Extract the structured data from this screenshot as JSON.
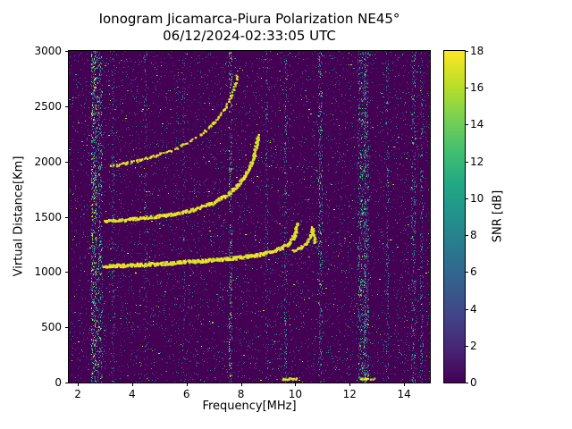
{
  "figure": {
    "title": "Ionogram Jicamarca-Piura Polarization NE45°",
    "subtitle": "06/12/2024-02:33:05 UTC"
  },
  "axes": {
    "xlabel": "Frequency[MHz]",
    "ylabel": "Virtual Distance[Km]",
    "x_ticks": [
      2,
      4,
      6,
      8,
      10,
      12,
      14
    ],
    "y_ticks": [
      0,
      500,
      1000,
      1500,
      2000,
      2500,
      3000
    ]
  },
  "colorbar": {
    "label": "SNR [dB]",
    "min": 0,
    "max": 18,
    "ticks": [
      0,
      2,
      4,
      6,
      8,
      10,
      12,
      14,
      16,
      18
    ]
  },
  "chart_data": {
    "type": "heatmap",
    "title": "Ionogram Jicamarca-Piura Polarization NE45° — 06/12/2024-02:33:05 UTC",
    "xlabel": "Frequency[MHz]",
    "ylabel": "Virtual Distance[Km]",
    "colorbar_label": "SNR [dB]",
    "xlim": [
      1.67,
      14.95
    ],
    "ylim": [
      0,
      3000
    ],
    "snr_range_db": [
      0,
      18
    ],
    "colormap": [
      {
        "t": 0.0,
        "color": "#440154"
      },
      {
        "t": 0.1,
        "color": "#482475"
      },
      {
        "t": 0.2,
        "color": "#414487"
      },
      {
        "t": 0.3,
        "color": "#355f8d"
      },
      {
        "t": 0.4,
        "color": "#2a788e"
      },
      {
        "t": 0.5,
        "color": "#21918c"
      },
      {
        "t": 0.6,
        "color": "#22a884"
      },
      {
        "t": 0.7,
        "color": "#44bf70"
      },
      {
        "t": 0.8,
        "color": "#7ad151"
      },
      {
        "t": 0.9,
        "color": "#bddf26"
      },
      {
        "t": 1.0,
        "color": "#fde725"
      }
    ],
    "noise": {
      "count": 12000,
      "exponent": 3,
      "vmax": 0.55,
      "bright_count": 450
    },
    "rfi_stripes": [
      {
        "f": 2.6,
        "width_mhz": 0.1,
        "density": 2.4,
        "vmax": 1.0
      },
      {
        "f": 2.82,
        "width_mhz": 0.08,
        "density": 1.3,
        "vmax": 0.85
      },
      {
        "f": 3.3,
        "width_mhz": 0.05,
        "density": 0.5,
        "vmax": 0.6
      },
      {
        "f": 4.5,
        "width_mhz": 0.05,
        "density": 0.35,
        "vmax": 0.55
      },
      {
        "f": 5.9,
        "width_mhz": 0.05,
        "density": 0.3,
        "vmax": 0.5
      },
      {
        "f": 7.62,
        "width_mhz": 0.06,
        "density": 0.9,
        "vmax": 0.95
      },
      {
        "f": 8.95,
        "width_mhz": 0.05,
        "density": 0.5,
        "vmax": 0.6
      },
      {
        "f": 9.65,
        "width_mhz": 0.05,
        "density": 0.6,
        "vmax": 0.7
      },
      {
        "f": 10.93,
        "width_mhz": 0.07,
        "density": 1.0,
        "vmax": 0.8
      },
      {
        "f": 12.45,
        "width_mhz": 0.14,
        "density": 2.2,
        "vmax": 0.85
      },
      {
        "f": 12.62,
        "width_mhz": 0.08,
        "density": 1.3,
        "vmax": 0.8
      },
      {
        "f": 13.38,
        "width_mhz": 0.05,
        "density": 0.5,
        "vmax": 0.6
      },
      {
        "f": 14.35,
        "width_mhz": 0.08,
        "density": 1.0,
        "vmax": 0.75
      },
      {
        "f": 14.65,
        "width_mhz": 0.05,
        "density": 0.6,
        "vmax": 0.65
      }
    ],
    "traces": [
      {
        "name": "f-region-echo-first-hop",
        "points": [
          [
            3.0,
            1050
          ],
          [
            3.6,
            1056
          ],
          [
            4.2,
            1062
          ],
          [
            4.8,
            1070
          ],
          [
            5.4,
            1078
          ],
          [
            6.0,
            1088
          ],
          [
            6.6,
            1098
          ],
          [
            7.2,
            1110
          ],
          [
            7.8,
            1124
          ],
          [
            8.3,
            1140
          ],
          [
            8.8,
            1160
          ],
          [
            9.2,
            1185
          ],
          [
            9.5,
            1215
          ],
          [
            9.75,
            1255
          ],
          [
            9.95,
            1310
          ],
          [
            10.05,
            1380
          ],
          [
            10.1,
            1430
          ]
        ],
        "density": 1.0,
        "jitter": 3.2,
        "size": 2.6
      },
      {
        "name": "f-region-echo-x-mode-hook",
        "points": [
          [
            9.9,
            1185
          ],
          [
            10.2,
            1215
          ],
          [
            10.45,
            1265
          ],
          [
            10.58,
            1330
          ],
          [
            10.65,
            1400
          ],
          [
            10.7,
            1330
          ],
          [
            10.73,
            1255
          ]
        ],
        "density": 0.9,
        "jitter": 2.6,
        "size": 2.2
      },
      {
        "name": "f-region-echo-second-hop",
        "points": [
          [
            3.0,
            1458
          ],
          [
            3.6,
            1468
          ],
          [
            4.2,
            1480
          ],
          [
            4.8,
            1496
          ],
          [
            5.4,
            1516
          ],
          [
            6.0,
            1545
          ],
          [
            6.5,
            1580
          ],
          [
            7.0,
            1625
          ],
          [
            7.4,
            1680
          ],
          [
            7.8,
            1755
          ],
          [
            8.1,
            1845
          ],
          [
            8.35,
            1950
          ],
          [
            8.5,
            2060
          ],
          [
            8.6,
            2170
          ],
          [
            8.65,
            2230
          ]
        ],
        "density": 0.95,
        "jitter": 3.0,
        "size": 2.4
      },
      {
        "name": "f-region-echo-third-hop",
        "points": [
          [
            3.15,
            1950
          ],
          [
            3.7,
            1978
          ],
          [
            4.2,
            2005
          ],
          [
            4.8,
            2045
          ],
          [
            5.4,
            2095
          ],
          [
            6.0,
            2160
          ],
          [
            6.5,
            2235
          ],
          [
            6.9,
            2315
          ],
          [
            7.2,
            2400
          ],
          [
            7.45,
            2490
          ],
          [
            7.65,
            2590
          ],
          [
            7.8,
            2700
          ],
          [
            7.88,
            2780
          ]
        ],
        "density": 0.5,
        "jitter": 2.6,
        "size": 2.1
      },
      {
        "name": "bottom-interference-echo-a",
        "points": [
          [
            9.55,
            30
          ],
          [
            10.05,
            32
          ]
        ],
        "density": 0.85,
        "jitter": 2.0,
        "size": 2.2
      },
      {
        "name": "bottom-interference-echo-b",
        "points": [
          [
            12.42,
            28
          ],
          [
            12.95,
            30
          ]
        ],
        "density": 0.7,
        "jitter": 2.0,
        "size": 2.0
      }
    ]
  }
}
